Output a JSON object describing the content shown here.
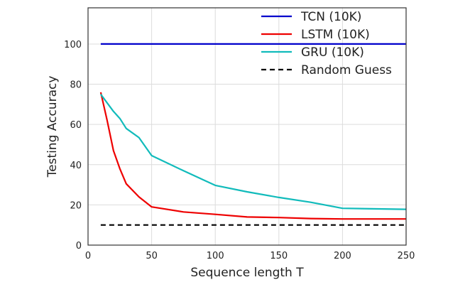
{
  "chart_data": {
    "type": "line",
    "xlabel": "Sequence length T",
    "ylabel": "Testing Accuracy",
    "xlim": [
      0,
      250
    ],
    "ylim": [
      0,
      118
    ],
    "xticks": [
      "0",
      "50",
      "100",
      "150",
      "200",
      "250"
    ],
    "yticks": [
      "0",
      "20",
      "40",
      "60",
      "80",
      "100"
    ],
    "grid": true,
    "legend_position": "top-right",
    "series": [
      {
        "name": "TCN (10K)",
        "color": "#0000cc",
        "dash": "solid",
        "x": [
          10,
          250
        ],
        "y": [
          100,
          100
        ]
      },
      {
        "name": "LSTM (10K)",
        "color": "#ee0000",
        "dash": "solid",
        "x": [
          10,
          15,
          20,
          25,
          30,
          40,
          50,
          75,
          100,
          125,
          150,
          175,
          200,
          250
        ],
        "y": [
          76,
          62,
          47,
          38,
          30.5,
          24,
          19,
          16.5,
          15.3,
          14,
          13.7,
          13.2,
          13,
          13
        ]
      },
      {
        "name": "GRU (10K)",
        "color": "#11bbbb",
        "dash": "solid",
        "x": [
          10,
          20,
          25,
          30,
          40,
          50,
          75,
          100,
          125,
          150,
          175,
          200,
          250
        ],
        "y": [
          75,
          66.5,
          63,
          58,
          53.5,
          44.5,
          37,
          29.7,
          26.5,
          23.7,
          21.3,
          18.3,
          17.8
        ]
      },
      {
        "name": "Random Guess",
        "color": "#000000",
        "dash": "dashed",
        "x": [
          10,
          250
        ],
        "y": [
          10,
          10
        ]
      }
    ]
  }
}
